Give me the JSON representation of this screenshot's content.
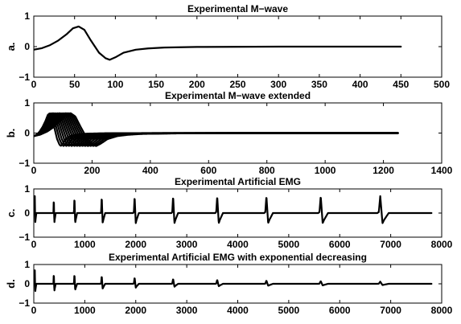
{
  "chart_data": [
    {
      "type": "line",
      "title": "Experimental M−wave",
      "side_label": "a.",
      "xlim": [
        0,
        500
      ],
      "ylim": [
        -1,
        1
      ],
      "xticks": [
        0,
        50,
        100,
        150,
        200,
        250,
        300,
        350,
        400,
        450,
        500
      ],
      "xtick_labels": [
        "0",
        "50",
        "100",
        "150",
        "200",
        "250",
        "300",
        "350",
        "400",
        "450",
        "500"
      ],
      "yticks": [
        -1,
        0,
        1
      ],
      "ytick_labels": [
        "−1",
        "0",
        "1"
      ],
      "series": [
        {
          "x": [
            0,
            10,
            20,
            30,
            40,
            48,
            55,
            62,
            70,
            80,
            88,
            93,
            100,
            110,
            125,
            140,
            160,
            200,
            300,
            450
          ],
          "y": [
            -0.1,
            -0.05,
            0.05,
            0.2,
            0.4,
            0.6,
            0.66,
            0.55,
            0.2,
            -0.2,
            -0.38,
            -0.43,
            -0.35,
            -0.2,
            -0.1,
            -0.06,
            -0.03,
            -0.01,
            0.0,
            0.0
          ]
        }
      ]
    },
    {
      "type": "line",
      "title": "Experimental M−wave extended",
      "side_label": "b.",
      "xlim": [
        0,
        1400
      ],
      "ylim": [
        -1,
        1
      ],
      "xticks": [
        0,
        200,
        400,
        600,
        800,
        1000,
        1200,
        1400
      ],
      "xtick_labels": [
        "0",
        "200",
        "400",
        "600",
        "800",
        "1000",
        "1200",
        "1400"
      ],
      "yticks": [
        -1,
        0,
        1
      ],
      "ytick_labels": [
        "−1",
        "0",
        "1"
      ],
      "overlay": {
        "template_x": [
          0,
          10,
          20,
          30,
          40,
          48,
          55,
          62,
          70,
          80,
          88,
          93,
          100,
          110,
          125,
          140,
          160
        ],
        "template_y": [
          -0.1,
          -0.05,
          0.05,
          0.2,
          0.4,
          0.6,
          0.66,
          0.55,
          0.2,
          -0.2,
          -0.38,
          -0.43,
          -0.35,
          -0.2,
          -0.1,
          -0.06,
          -0.03
        ],
        "stretch": [
          1.0,
          1.1,
          1.2,
          1.3,
          1.4,
          1.5,
          1.6,
          1.7,
          1.8,
          1.9,
          2.0,
          2.1,
          2.2,
          2.3
        ],
        "x_end": 1250
      }
    },
    {
      "type": "line",
      "title": "Experimental Artificial EMG",
      "side_label": "c.",
      "xlim": [
        0,
        8000
      ],
      "ylim": [
        -1,
        1
      ],
      "xticks": [
        0,
        1000,
        2000,
        3000,
        4000,
        5000,
        6000,
        7000,
        8000
      ],
      "xtick_labels": [
        "0",
        "1000",
        "2000",
        "3000",
        "4000",
        "5000",
        "6000",
        "7000",
        "8000"
      ],
      "yticks": [
        -1,
        0,
        1
      ],
      "ytick_labels": [
        "−1",
        "0",
        "1"
      ],
      "spikes": {
        "positions": [
          10,
          380,
          780,
          1310,
          1950,
          2700,
          3560,
          4520,
          5580,
          6740
        ],
        "widths": [
          40,
          50,
          70,
          90,
          110,
          130,
          150,
          170,
          190,
          220
        ],
        "amplitudes": [
          1,
          1,
          1,
          1,
          1,
          1,
          1,
          1,
          1,
          1
        ],
        "x_end": 7800
      }
    },
    {
      "type": "line",
      "title": "Experimental Artificial EMG with exponential decreasing",
      "side_label": "d.",
      "xlim": [
        0,
        8000
      ],
      "ylim": [
        -1,
        1
      ],
      "xticks": [
        0,
        1000,
        2000,
        3000,
        4000,
        5000,
        6000,
        7000,
        8000
      ],
      "xtick_labels": [
        "0",
        "1000",
        "2000",
        "3000",
        "4000",
        "5000",
        "6000",
        "7000",
        "8000"
      ],
      "yticks": [
        -1,
        0,
        1
      ],
      "ytick_labels": [
        "−1",
        "0",
        "1"
      ],
      "spikes": {
        "positions": [
          10,
          380,
          780,
          1310,
          1950,
          2700,
          3560,
          4520,
          5580,
          6740
        ],
        "widths": [
          40,
          50,
          70,
          90,
          110,
          130,
          150,
          170,
          190,
          220
        ],
        "amplitudes": [
          1.0,
          0.92,
          0.78,
          0.62,
          0.48,
          0.37,
          0.3,
          0.24,
          0.2,
          0.16
        ],
        "x_end": 7800
      }
    }
  ]
}
